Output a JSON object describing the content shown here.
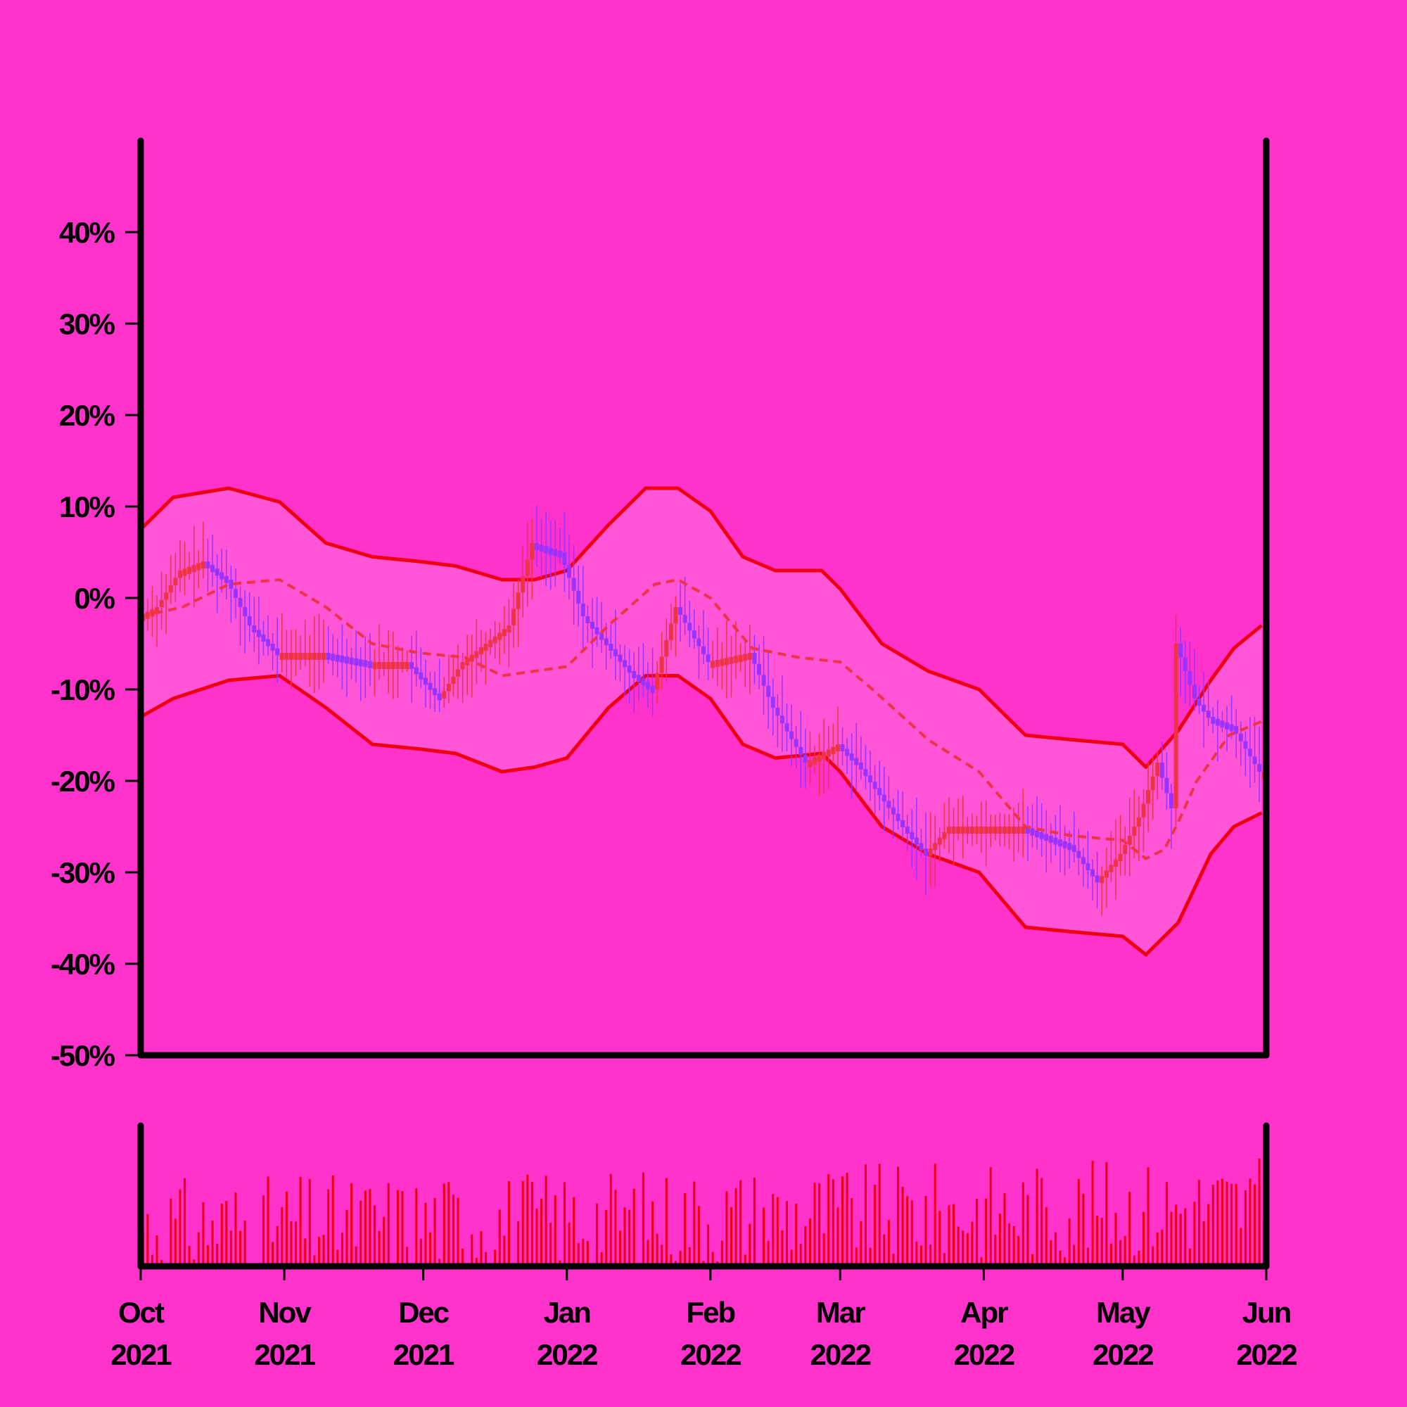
{
  "chart_data": {
    "type": "candlestick",
    "title": "",
    "xlabel": "",
    "ylabel": "",
    "ylim": [
      -50,
      50
    ],
    "y_ticks": [
      40,
      30,
      20,
      10,
      0,
      -10,
      -20,
      -30,
      -40,
      -50
    ],
    "y_tick_labels": [
      "40%",
      "30%",
      "20%",
      "10%",
      "0%",
      "-10%",
      "-20%",
      "-30%",
      "-40%",
      "-50%"
    ],
    "x_range": [
      "2021-10-01",
      "2022-06-01"
    ],
    "x_ticks": [
      {
        "date": "2021-10-01",
        "month": "Oct",
        "year": "2021"
      },
      {
        "date": "2021-11-01",
        "month": "Nov",
        "year": "2021"
      },
      {
        "date": "2021-12-01",
        "month": "Dec",
        "year": "2021"
      },
      {
        "date": "2022-01-01",
        "month": "Jan",
        "year": "2022"
      },
      {
        "date": "2022-02-01",
        "month": "Feb",
        "year": "2022"
      },
      {
        "date": "2022-03-01",
        "month": "Mar",
        "year": "2022"
      },
      {
        "date": "2022-04-01",
        "month": "Apr",
        "year": "2022"
      },
      {
        "date": "2022-05-01",
        "month": "May",
        "year": "2022"
      },
      {
        "date": "2022-06-01",
        "month": "Jun",
        "year": "2022"
      }
    ],
    "price_path": [
      [
        "2021-10-01",
        -2
      ],
      [
        "2021-10-05",
        -1
      ],
      [
        "2021-10-10",
        3
      ],
      [
        "2021-10-15",
        4
      ],
      [
        "2021-10-20",
        2
      ],
      [
        "2021-10-25",
        -3
      ],
      [
        "2021-10-31",
        -6
      ],
      [
        "2021-11-10",
        -6
      ],
      [
        "2021-11-20",
        -7
      ],
      [
        "2021-11-28",
        -7
      ],
      [
        "2021-12-05",
        -11
      ],
      [
        "2021-12-10",
        -7
      ],
      [
        "2021-12-20",
        -3
      ],
      [
        "2021-12-25",
        6
      ],
      [
        "2021-12-31",
        5
      ],
      [
        "2022-01-05",
        -2
      ],
      [
        "2022-01-15",
        -8
      ],
      [
        "2022-01-20",
        -10
      ],
      [
        "2022-01-25",
        -1
      ],
      [
        "2022-02-01",
        -7
      ],
      [
        "2022-02-10",
        -6
      ],
      [
        "2022-02-15",
        -12
      ],
      [
        "2022-02-22",
        -18
      ],
      [
        "2022-03-01",
        -16
      ],
      [
        "2022-03-05",
        -18
      ],
      [
        "2022-03-15",
        -25
      ],
      [
        "2022-03-20",
        -28
      ],
      [
        "2022-03-25",
        -25
      ],
      [
        "2022-04-01",
        -25
      ],
      [
        "2022-04-10",
        -25
      ],
      [
        "2022-04-20",
        -27
      ],
      [
        "2022-04-26",
        -31
      ],
      [
        "2022-05-01",
        -28
      ],
      [
        "2022-05-05",
        -24
      ],
      [
        "2022-05-09",
        -18
      ],
      [
        "2022-05-12",
        -23
      ],
      [
        "2022-05-13",
        -5
      ],
      [
        "2022-05-17",
        -11
      ],
      [
        "2022-05-20",
        -13
      ],
      [
        "2022-05-25",
        -14
      ],
      [
        "2022-05-31",
        -19
      ]
    ],
    "moving_average": [
      [
        "2021-10-01",
        -2
      ],
      [
        "2021-10-10",
        -1
      ],
      [
        "2021-10-20",
        1.5
      ],
      [
        "2021-10-31",
        2
      ],
      [
        "2021-11-10",
        -1
      ],
      [
        "2021-11-20",
        -5
      ],
      [
        "2021-11-30",
        -6
      ],
      [
        "2021-12-10",
        -6.5
      ],
      [
        "2021-12-18",
        -8.5
      ],
      [
        "2021-12-25",
        -8
      ],
      [
        "2022-01-01",
        -7.5
      ],
      [
        "2022-01-10",
        -3
      ],
      [
        "2022-01-20",
        1.5
      ],
      [
        "2022-01-25",
        2
      ],
      [
        "2022-02-01",
        0
      ],
      [
        "2022-02-10",
        -5.5
      ],
      [
        "2022-02-20",
        -6.5
      ],
      [
        "2022-03-01",
        -7
      ],
      [
        "2022-03-08",
        -10
      ],
      [
        "2022-03-20",
        -15.5
      ],
      [
        "2022-03-31",
        -19
      ],
      [
        "2022-04-10",
        -25
      ],
      [
        "2022-04-20",
        -26
      ],
      [
        "2022-05-01",
        -26.5
      ],
      [
        "2022-05-06",
        -28.5
      ],
      [
        "2022-05-10",
        -27.5
      ],
      [
        "2022-05-13",
        -24.5
      ],
      [
        "2022-05-17",
        -20
      ],
      [
        "2022-05-24",
        -15
      ],
      [
        "2022-05-31",
        -13.5
      ]
    ],
    "upper_band": [
      [
        "2021-10-01",
        7.5
      ],
      [
        "2021-10-08",
        11
      ],
      [
        "2021-10-20",
        12
      ],
      [
        "2021-10-31",
        10.5
      ],
      [
        "2021-11-10",
        6
      ],
      [
        "2021-11-20",
        4.5
      ],
      [
        "2021-11-30",
        4
      ],
      [
        "2021-12-08",
        3.5
      ],
      [
        "2021-12-18",
        2
      ],
      [
        "2021-12-25",
        2
      ],
      [
        "2022-01-01",
        3
      ],
      [
        "2022-01-10",
        8
      ],
      [
        "2022-01-18",
        12
      ],
      [
        "2022-01-25",
        12
      ],
      [
        "2022-02-01",
        9.5
      ],
      [
        "2022-02-08",
        4.5
      ],
      [
        "2022-02-15",
        3
      ],
      [
        "2022-02-25",
        3
      ],
      [
        "2022-03-01",
        1
      ],
      [
        "2022-03-10",
        -5
      ],
      [
        "2022-03-20",
        -8
      ],
      [
        "2022-03-31",
        -10
      ],
      [
        "2022-04-10",
        -15
      ],
      [
        "2022-04-20",
        -15.5
      ],
      [
        "2022-05-01",
        -16
      ],
      [
        "2022-05-06",
        -18.5
      ],
      [
        "2022-05-13",
        -14.5
      ],
      [
        "2022-05-20",
        -9
      ],
      [
        "2022-05-25",
        -5.5
      ],
      [
        "2022-05-31",
        -3
      ]
    ],
    "lower_band": [
      [
        "2021-10-01",
        -13
      ],
      [
        "2021-10-08",
        -11
      ],
      [
        "2021-10-20",
        -9
      ],
      [
        "2021-10-31",
        -8.5
      ],
      [
        "2021-11-10",
        -12
      ],
      [
        "2021-11-20",
        -16
      ],
      [
        "2021-11-30",
        -16.5
      ],
      [
        "2021-12-08",
        -17
      ],
      [
        "2021-12-18",
        -19
      ],
      [
        "2021-12-25",
        -18.5
      ],
      [
        "2022-01-01",
        -17.5
      ],
      [
        "2022-01-10",
        -12
      ],
      [
        "2022-01-18",
        -8.5
      ],
      [
        "2022-01-25",
        -8.5
      ],
      [
        "2022-02-01",
        -11
      ],
      [
        "2022-02-08",
        -16
      ],
      [
        "2022-02-15",
        -17.5
      ],
      [
        "2022-02-25",
        -17
      ],
      [
        "2022-03-01",
        -19
      ],
      [
        "2022-03-10",
        -25
      ],
      [
        "2022-03-20",
        -28
      ],
      [
        "2022-03-31",
        -30
      ],
      [
        "2022-04-10",
        -36
      ],
      [
        "2022-04-20",
        -36.5
      ],
      [
        "2022-05-01",
        -37
      ],
      [
        "2022-05-06",
        -39
      ],
      [
        "2022-05-13",
        -35.5
      ],
      [
        "2022-05-20",
        -28
      ],
      [
        "2022-05-25",
        -25
      ],
      [
        "2022-05-31",
        -23.5
      ]
    ],
    "volume_range": [
      0,
      1
    ],
    "colors": {
      "background": "#ff33cc",
      "band_fill": "#ff55d6",
      "band_line": "#ee0011",
      "moving_average": "#ee3344",
      "candle_up": "#ee3344",
      "candle_down": "#9933ff",
      "volume": "#ee0011",
      "axis": "#000000"
    }
  }
}
